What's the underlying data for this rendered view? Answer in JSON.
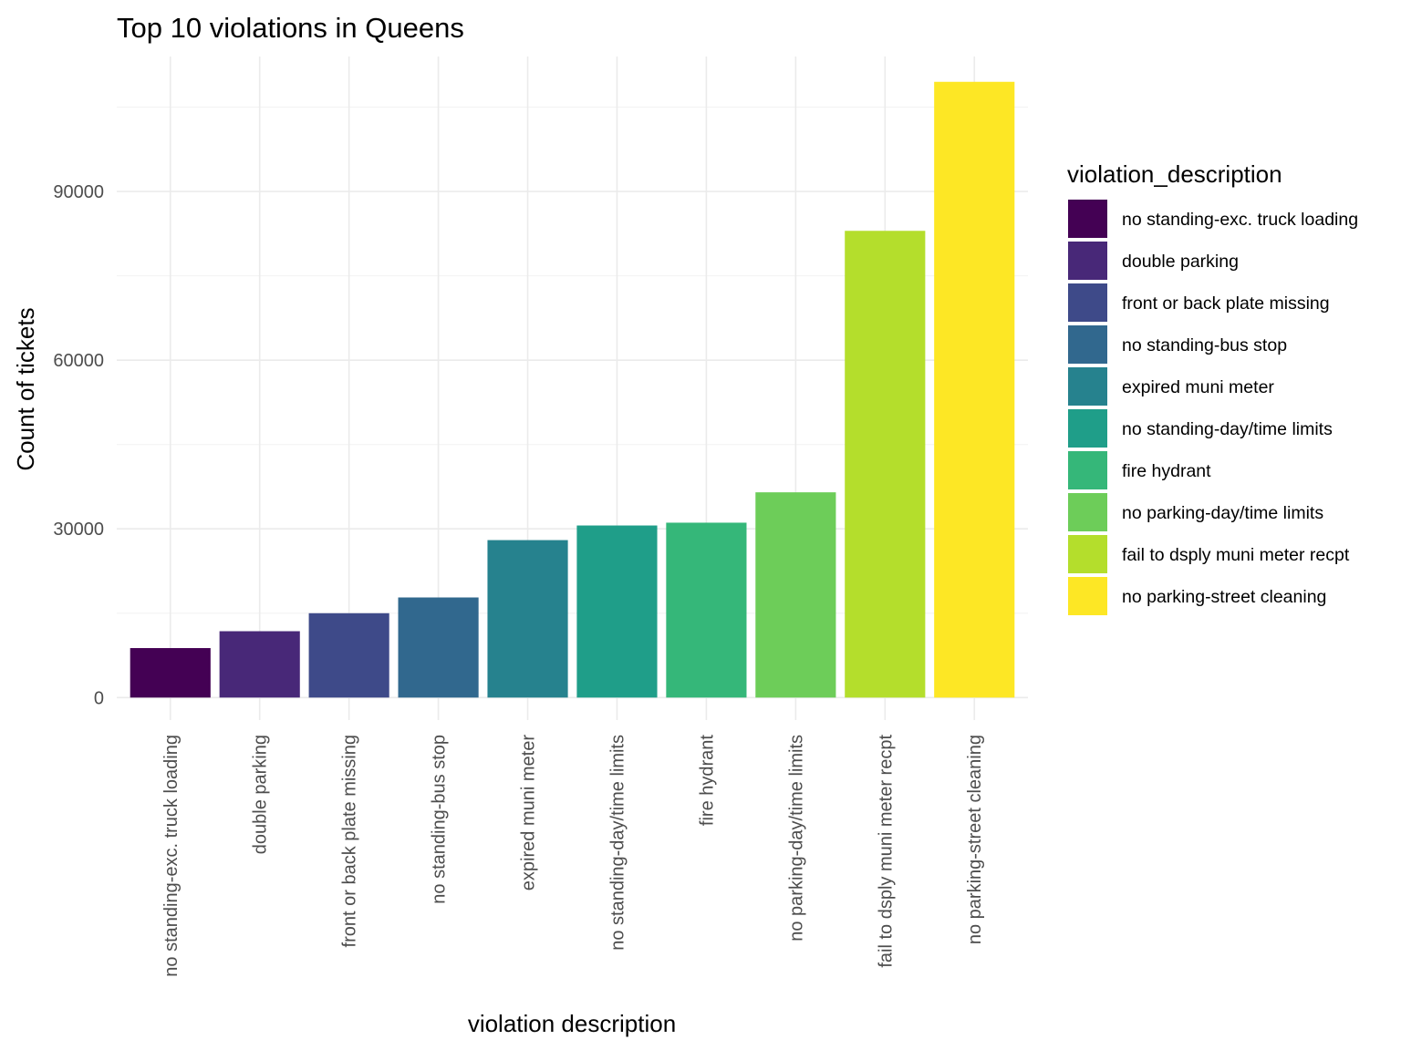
{
  "chart_data": {
    "type": "bar",
    "title": "Top 10 violations in Queens",
    "xlabel": "violation description",
    "ylabel": "Count of tickets",
    "ylim": [
      -4000,
      114000
    ],
    "yticks": [
      0,
      30000,
      60000,
      90000
    ],
    "ytick_labels": [
      "0",
      "30000",
      "60000",
      "90000"
    ],
    "grid": true,
    "legend_position": "right",
    "legend_title": "violation_description",
    "categories": [
      "no standing-exc. truck loading",
      "double parking",
      "front or back plate missing",
      "no standing-bus stop",
      "expired muni meter",
      "no standing-day/time limits",
      "fire hydrant",
      "no parking-day/time limits",
      "fail to dsply muni meter recpt",
      "no parking-street cleaning"
    ],
    "values": [
      8800,
      11800,
      15000,
      17800,
      28000,
      30600,
      31100,
      36500,
      83000,
      109500
    ],
    "colors": [
      "#440154",
      "#482878",
      "#3E4A89",
      "#31688E",
      "#26828E",
      "#1F9E89",
      "#35B779",
      "#6DCD59",
      "#B4DE2C",
      "#FDE725"
    ]
  }
}
